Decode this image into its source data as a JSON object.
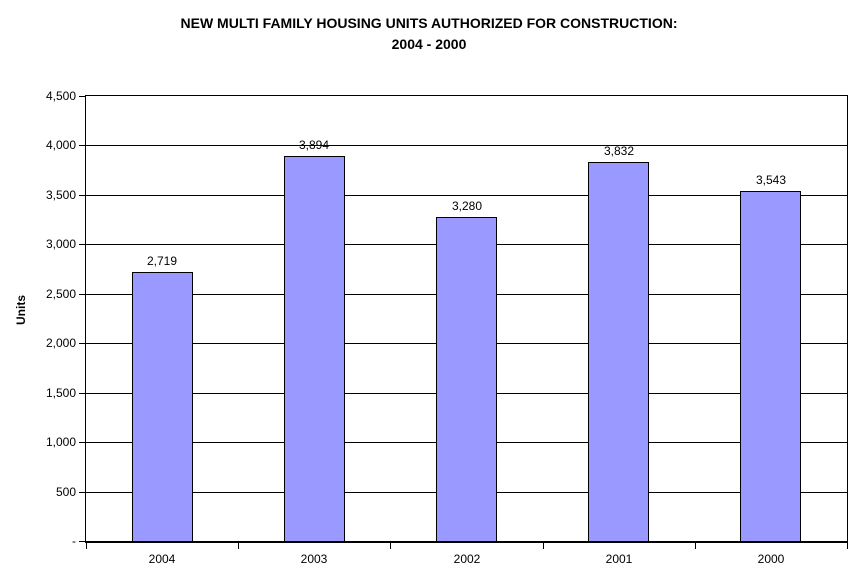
{
  "chart_data": {
    "type": "bar",
    "title_line1": "NEW MULTI FAMILY HOUSING UNITS AUTHORIZED FOR CONSTRUCTION:",
    "title_line2": "2004 - 2000",
    "categories": [
      "2004",
      "2003",
      "2002",
      "2001",
      "2000"
    ],
    "values": [
      2719,
      3894,
      3280,
      3832,
      3543
    ],
    "value_labels": [
      "2,719",
      "3,894",
      "3,280",
      "3,832",
      "3,543"
    ],
    "xlabel": "",
    "ylabel": "Units",
    "ylim": [
      0,
      4500
    ],
    "ytick_step": 500,
    "ytick_labels": [
      "-",
      "500",
      "1,000",
      "1,500",
      "2,000",
      "2,500",
      "3,000",
      "3,500",
      "4,000",
      "4,500"
    ],
    "grid": true,
    "legend": "none",
    "colors": {
      "bar_fill": "#9999FF",
      "bar_border": "#000000",
      "gridline": "#000000",
      "axis": "#000000",
      "background": "#FFFFFF",
      "text": "#000000"
    }
  }
}
